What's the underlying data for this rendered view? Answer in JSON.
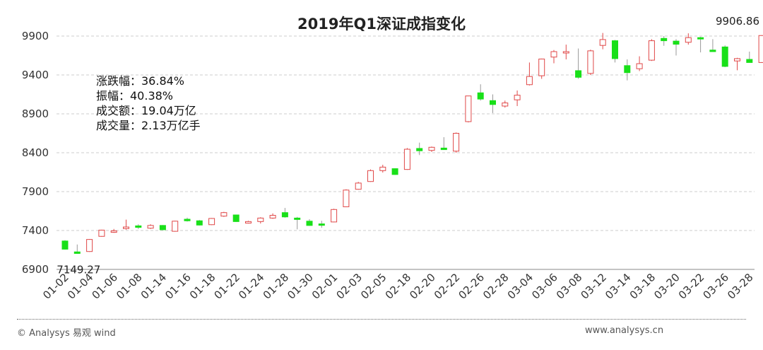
{
  "colors": {
    "up": "#e04848",
    "down": "#19e019",
    "axis": "#888888",
    "grid": "#cccccc"
  },
  "stats": {
    "change_pct": "涨跌幅：36.84%",
    "amplitude": "振幅：40.38%",
    "turnover": "成交额：19.04万亿",
    "volume": "成交量：2.13万亿手"
  },
  "footer": {
    "left": "© Analysys 易观 wind",
    "right": "www.analysys.cn"
  },
  "chart_data": {
    "type": "candlestick",
    "title": "2019年Q1深证成指变化",
    "ylim": [
      6900,
      10100
    ],
    "yticks": [
      6900,
      7400,
      7900,
      8400,
      8900,
      9400,
      9900
    ],
    "xtick_labels": [
      "01-02",
      "01-04",
      "01-06",
      "01-08",
      "01-14",
      "01-16",
      "01-18",
      "01-22",
      "01-24",
      "01-28",
      "01-30",
      "02-01",
      "02-03",
      "02-05",
      "02-18",
      "02-20",
      "02-22",
      "02-26",
      "02-28",
      "03-04",
      "03-06",
      "03-08",
      "03-12",
      "03-14",
      "03-18",
      "03-20",
      "03-22",
      "03-26",
      "03-28"
    ],
    "annotations": [
      {
        "text": "7149.27",
        "index": 1,
        "value": 7149.27
      },
      {
        "text": "9906.86",
        "index": 57,
        "value": 9906.86
      }
    ],
    "candles": [
      {
        "o": 7265,
        "h": 7275,
        "l": 7155,
        "c": 7160
      },
      {
        "o": 7125,
        "h": 7220,
        "l": 7100,
        "c": 7105
      },
      {
        "o": 7130,
        "h": 7290,
        "l": 7125,
        "c": 7285
      },
      {
        "o": 7325,
        "h": 7410,
        "l": 7320,
        "c": 7405
      },
      {
        "o": 7385,
        "h": 7420,
        "l": 7370,
        "c": 7395
      },
      {
        "o": 7425,
        "h": 7540,
        "l": 7410,
        "c": 7445
      },
      {
        "o": 7460,
        "h": 7480,
        "l": 7420,
        "c": 7440
      },
      {
        "o": 7430,
        "h": 7480,
        "l": 7420,
        "c": 7465
      },
      {
        "o": 7465,
        "h": 7470,
        "l": 7405,
        "c": 7410
      },
      {
        "o": 7390,
        "h": 7525,
        "l": 7385,
        "c": 7520
      },
      {
        "o": 7545,
        "h": 7565,
        "l": 7515,
        "c": 7525
      },
      {
        "o": 7525,
        "h": 7535,
        "l": 7465,
        "c": 7470
      },
      {
        "o": 7475,
        "h": 7560,
        "l": 7470,
        "c": 7555
      },
      {
        "o": 7585,
        "h": 7640,
        "l": 7575,
        "c": 7630
      },
      {
        "o": 7600,
        "h": 7605,
        "l": 7510,
        "c": 7515
      },
      {
        "o": 7495,
        "h": 7525,
        "l": 7490,
        "c": 7515
      },
      {
        "o": 7515,
        "h": 7570,
        "l": 7490,
        "c": 7560
      },
      {
        "o": 7560,
        "h": 7620,
        "l": 7550,
        "c": 7595
      },
      {
        "o": 7630,
        "h": 7690,
        "l": 7565,
        "c": 7575
      },
      {
        "o": 7560,
        "h": 7575,
        "l": 7415,
        "c": 7550
      },
      {
        "o": 7520,
        "h": 7545,
        "l": 7460,
        "c": 7465
      },
      {
        "o": 7485,
        "h": 7525,
        "l": 7435,
        "c": 7480
      },
      {
        "o": 7510,
        "h": 7680,
        "l": 7505,
        "c": 7670
      },
      {
        "o": 7705,
        "h": 7930,
        "l": 7700,
        "c": 7920
      },
      {
        "o": 7930,
        "h": 8025,
        "l": 7925,
        "c": 8010
      },
      {
        "o": 8030,
        "h": 8185,
        "l": 8025,
        "c": 8170
      },
      {
        "o": 8170,
        "h": 8245,
        "l": 8145,
        "c": 8215
      },
      {
        "o": 8195,
        "h": 8200,
        "l": 8115,
        "c": 8120
      },
      {
        "o": 8185,
        "h": 8460,
        "l": 8180,
        "c": 8445
      },
      {
        "o": 8455,
        "h": 8530,
        "l": 8370,
        "c": 8425
      },
      {
        "o": 8430,
        "h": 8480,
        "l": 8410,
        "c": 8470
      },
      {
        "o": 8460,
        "h": 8600,
        "l": 8440,
        "c": 8440
      },
      {
        "o": 8420,
        "h": 8660,
        "l": 8400,
        "c": 8650
      },
      {
        "o": 8800,
        "h": 9130,
        "l": 8790,
        "c": 9130
      },
      {
        "o": 9170,
        "h": 9280,
        "l": 9070,
        "c": 9090
      },
      {
        "o": 9070,
        "h": 9150,
        "l": 8910,
        "c": 9020
      },
      {
        "o": 9000,
        "h": 9070,
        "l": 8980,
        "c": 9040
      },
      {
        "o": 9080,
        "h": 9200,
        "l": 9000,
        "c": 9140
      },
      {
        "o": 9275,
        "h": 9560,
        "l": 9265,
        "c": 9380
      },
      {
        "o": 9390,
        "h": 9610,
        "l": 9350,
        "c": 9605
      },
      {
        "o": 9630,
        "h": 9720,
        "l": 9550,
        "c": 9700
      },
      {
        "o": 9700,
        "h": 9790,
        "l": 9600,
        "c": 9700
      },
      {
        "o": 9455,
        "h": 9740,
        "l": 9350,
        "c": 9370
      },
      {
        "o": 9420,
        "h": 9725,
        "l": 9400,
        "c": 9710
      },
      {
        "o": 9780,
        "h": 9940,
        "l": 9730,
        "c": 9855
      },
      {
        "o": 9840,
        "h": 9850,
        "l": 9560,
        "c": 9610
      },
      {
        "o": 9520,
        "h": 9600,
        "l": 9330,
        "c": 9430
      },
      {
        "o": 9480,
        "h": 9640,
        "l": 9450,
        "c": 9545
      },
      {
        "o": 9590,
        "h": 9860,
        "l": 9580,
        "c": 9840
      },
      {
        "o": 9870,
        "h": 9900,
        "l": 9775,
        "c": 9840
      },
      {
        "o": 9835,
        "h": 9860,
        "l": 9650,
        "c": 9795
      },
      {
        "o": 9820,
        "h": 9935,
        "l": 9790,
        "c": 9880
      },
      {
        "o": 9880,
        "h": 9890,
        "l": 9690,
        "c": 9870
      },
      {
        "o": 9720,
        "h": 9860,
        "l": 9700,
        "c": 9700
      },
      {
        "o": 9760,
        "h": 9780,
        "l": 9500,
        "c": 9510
      },
      {
        "o": 9580,
        "h": 9620,
        "l": 9460,
        "c": 9610
      },
      {
        "o": 9600,
        "h": 9700,
        "l": 9560,
        "c": 9560
      },
      {
        "o": 9560,
        "h": 9910,
        "l": 9555,
        "c": 9906.86
      }
    ]
  }
}
